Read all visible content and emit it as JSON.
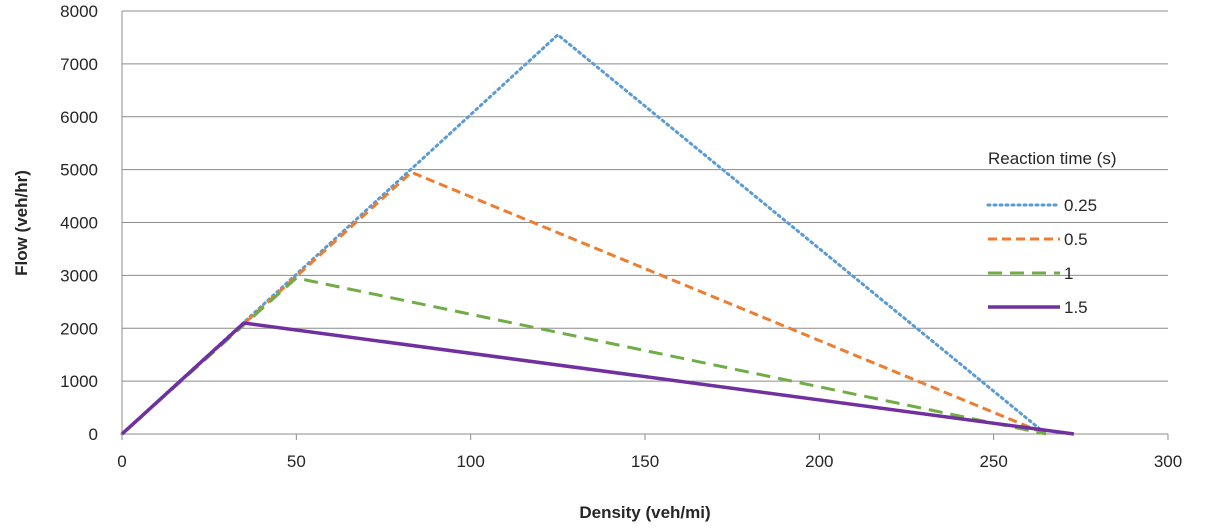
{
  "chart_data": {
    "type": "line",
    "title": "",
    "xlabel": "Density (veh/mi)",
    "ylabel": "Flow (veh/hr)",
    "xlim": [
      0,
      300
    ],
    "ylim": [
      0,
      8000
    ],
    "xticks": [
      0,
      50,
      100,
      150,
      200,
      250,
      300
    ],
    "yticks": [
      0,
      1000,
      2000,
      3000,
      4000,
      5000,
      6000,
      7000,
      8000
    ],
    "grid": "horizontal",
    "legend": {
      "title": "Reaction time (s)",
      "position": "right"
    },
    "series": [
      {
        "name": "0.25",
        "color": "#5B9BD5",
        "style": "dotted",
        "x": [
          0,
          125,
          265
        ],
        "y": [
          0,
          7550,
          0
        ]
      },
      {
        "name": "0.5",
        "color": "#ED7D31",
        "style": "dashed",
        "x": [
          0,
          83,
          265
        ],
        "y": [
          0,
          4950,
          0
        ]
      },
      {
        "name": "1",
        "color": "#70AD47",
        "style": "long-dashed",
        "x": [
          0,
          50,
          265
        ],
        "y": [
          0,
          2950,
          0
        ]
      },
      {
        "name": "1.5",
        "color": "#7030A0",
        "style": "solid",
        "x": [
          0,
          35,
          273
        ],
        "y": [
          0,
          2100,
          0
        ]
      }
    ]
  }
}
